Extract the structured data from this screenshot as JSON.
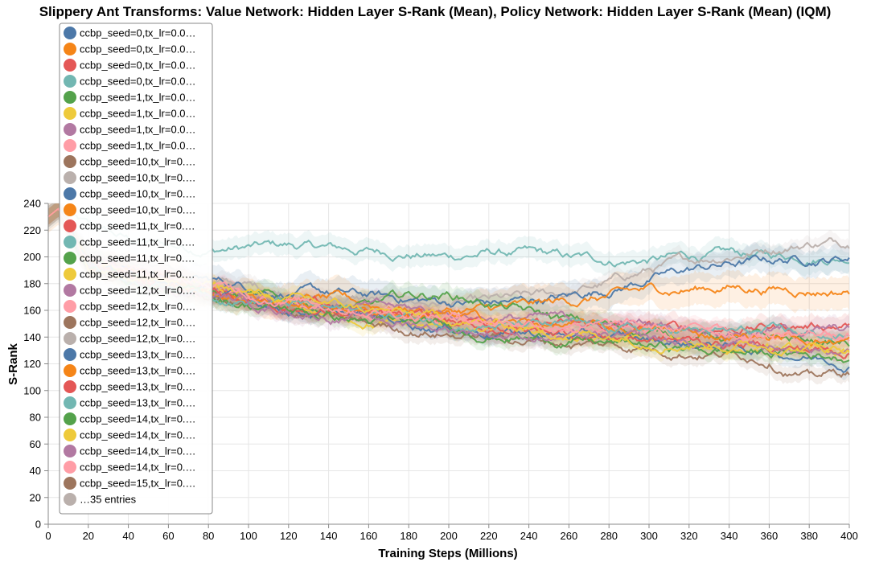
{
  "chart_data": {
    "type": "line",
    "title": "Slippery Ant Transforms: Value Network: Hidden Layer S-Rank (Mean), Policy Network: Hidden Layer S-Rank (Mean) (IQM)",
    "xlabel": "Training Steps (Millions)",
    "ylabel": "S-Rank",
    "xlim": [
      0,
      400
    ],
    "ylim": [
      0,
      240
    ],
    "x_ticks": [
      "0",
      "20",
      "40",
      "60",
      "80",
      "100",
      "120",
      "140",
      "160",
      "180",
      "200",
      "220",
      "240",
      "260",
      "280",
      "300",
      "320",
      "340",
      "360",
      "380",
      "400"
    ],
    "y_ticks": [
      "0",
      "20",
      "40",
      "60",
      "80",
      "100",
      "120",
      "140",
      "160",
      "180",
      "200",
      "220",
      "240"
    ],
    "grid": true,
    "legend_position": "top-left",
    "legend": {
      "entries": [
        {
          "label": "ccbp_seed=0,tx_lr=0.0…",
          "color": "#4c78a8"
        },
        {
          "label": "ccbp_seed=0,tx_lr=0.0…",
          "color": "#f58518"
        },
        {
          "label": "ccbp_seed=0,tx_lr=0.0…",
          "color": "#e45756"
        },
        {
          "label": "ccbp_seed=0,tx_lr=0.0…",
          "color": "#72b7b2"
        },
        {
          "label": "ccbp_seed=1,tx_lr=0.0…",
          "color": "#54a24b"
        },
        {
          "label": "ccbp_seed=1,tx_lr=0.0…",
          "color": "#eeca3b"
        },
        {
          "label": "ccbp_seed=1,tx_lr=0.0…",
          "color": "#b279a2"
        },
        {
          "label": "ccbp_seed=1,tx_lr=0.0…",
          "color": "#ff9da6"
        },
        {
          "label": "ccbp_seed=10,tx_lr=0.…",
          "color": "#9d755d"
        },
        {
          "label": "ccbp_seed=10,tx_lr=0.…",
          "color": "#bab0ac"
        },
        {
          "label": "ccbp_seed=10,tx_lr=0.…",
          "color": "#4c78a8"
        },
        {
          "label": "ccbp_seed=10,tx_lr=0.…",
          "color": "#f58518"
        },
        {
          "label": "ccbp_seed=11,tx_lr=0.…",
          "color": "#e45756"
        },
        {
          "label": "ccbp_seed=11,tx_lr=0.…",
          "color": "#72b7b2"
        },
        {
          "label": "ccbp_seed=11,tx_lr=0.…",
          "color": "#54a24b"
        },
        {
          "label": "ccbp_seed=11,tx_lr=0.…",
          "color": "#eeca3b"
        },
        {
          "label": "ccbp_seed=12,tx_lr=0.…",
          "color": "#b279a2"
        },
        {
          "label": "ccbp_seed=12,tx_lr=0.…",
          "color": "#ff9da6"
        },
        {
          "label": "ccbp_seed=12,tx_lr=0.…",
          "color": "#9d755d"
        },
        {
          "label": "ccbp_seed=12,tx_lr=0.…",
          "color": "#bab0ac"
        },
        {
          "label": "ccbp_seed=13,tx_lr=0.…",
          "color": "#4c78a8"
        },
        {
          "label": "ccbp_seed=13,tx_lr=0.…",
          "color": "#f58518"
        },
        {
          "label": "ccbp_seed=13,tx_lr=0.…",
          "color": "#e45756"
        },
        {
          "label": "ccbp_seed=13,tx_lr=0.…",
          "color": "#72b7b2"
        },
        {
          "label": "ccbp_seed=14,tx_lr=0.…",
          "color": "#54a24b"
        },
        {
          "label": "ccbp_seed=14,tx_lr=0.…",
          "color": "#eeca3b"
        },
        {
          "label": "ccbp_seed=14,tx_lr=0.…",
          "color": "#b279a2"
        },
        {
          "label": "ccbp_seed=14,tx_lr=0.…",
          "color": "#ff9da6"
        },
        {
          "label": "ccbp_seed=15,tx_lr=0.…",
          "color": "#9d755d"
        },
        {
          "label": "…35 entries",
          "color": "#bab0ac"
        }
      ]
    },
    "series": [
      {
        "color": "#72b7b2",
        "band": 8,
        "x": [
          0,
          5,
          20,
          40,
          60,
          80,
          100,
          120,
          140,
          160,
          180,
          200,
          220,
          240,
          260,
          280,
          300,
          320,
          340,
          360,
          380,
          400
        ],
        "y": [
          230,
          236,
          222,
          212,
          208,
          206,
          207,
          208,
          206,
          204,
          203,
          200,
          203,
          202,
          198,
          197,
          198,
          200,
          201,
          200,
          201,
          201
        ]
      },
      {
        "color": "#bab0ac",
        "band": 6,
        "x": [
          0,
          5,
          20,
          40,
          60,
          80,
          100,
          120,
          140,
          160,
          180,
          200,
          220,
          240,
          260,
          280,
          300,
          320,
          340,
          360,
          380,
          400
        ],
        "y": [
          230,
          236,
          205,
          196,
          188,
          182,
          178,
          174,
          170,
          168,
          166,
          165,
          165,
          168,
          172,
          180,
          190,
          196,
          202,
          207,
          211,
          212
        ]
      },
      {
        "color": "#4c78a8",
        "band": 10,
        "x": [
          0,
          5,
          20,
          40,
          60,
          80,
          100,
          120,
          140,
          160,
          180,
          200,
          220,
          240,
          260,
          280,
          300,
          320,
          340,
          360,
          380,
          400
        ],
        "y": [
          230,
          236,
          200,
          192,
          186,
          182,
          178,
          175,
          172,
          170,
          168,
          166,
          165,
          167,
          170,
          176,
          184,
          190,
          194,
          197,
          199,
          200
        ]
      },
      {
        "color": "#f58518",
        "band": 12,
        "x": [
          0,
          5,
          20,
          40,
          60,
          80,
          100,
          120,
          140,
          160,
          180,
          200,
          220,
          240,
          260,
          280,
          300,
          320,
          340,
          360,
          380,
          400
        ],
        "y": [
          230,
          236,
          198,
          190,
          184,
          178,
          174,
          170,
          168,
          164,
          162,
          160,
          160,
          162,
          166,
          170,
          174,
          176,
          178,
          177,
          176,
          175
        ]
      },
      {
        "color": "#e45756",
        "band": 8,
        "x": [
          0,
          5,
          20,
          40,
          60,
          80,
          100,
          120,
          140,
          160,
          180,
          200,
          220,
          240,
          260,
          280,
          300,
          320,
          340,
          360,
          380,
          400
        ],
        "y": [
          230,
          236,
          196,
          188,
          181,
          176,
          171,
          166,
          162,
          158,
          155,
          152,
          150,
          149,
          148,
          147,
          146,
          146,
          147,
          148,
          149,
          150
        ]
      },
      {
        "color": "#54a24b",
        "band": 8,
        "x": [
          0,
          5,
          20,
          40,
          60,
          80,
          100,
          120,
          140,
          160,
          180,
          200,
          220,
          240,
          260,
          280,
          300,
          320,
          340,
          360,
          380,
          400
        ],
        "y": [
          230,
          236,
          195,
          187,
          180,
          175,
          170,
          166,
          163,
          162,
          170,
          172,
          166,
          158,
          152,
          148,
          144,
          142,
          140,
          138,
          137,
          135
        ]
      },
      {
        "color": "#eeca3b",
        "band": 6,
        "x": [
          0,
          5,
          20,
          40,
          60,
          80,
          100,
          120,
          140,
          160,
          180,
          200,
          220,
          240,
          260,
          280,
          300,
          320,
          340,
          360,
          380,
          400
        ],
        "y": [
          230,
          236,
          193,
          185,
          178,
          172,
          166,
          160,
          156,
          152,
          148,
          145,
          143,
          141,
          139,
          137,
          136,
          134,
          132,
          130,
          128,
          126
        ]
      },
      {
        "color": "#b279a2",
        "band": 8,
        "x": [
          0,
          5,
          20,
          40,
          60,
          80,
          100,
          120,
          140,
          160,
          180,
          200,
          220,
          240,
          260,
          280,
          300,
          320,
          340,
          360,
          380,
          400
        ],
        "y": [
          230,
          236,
          196,
          188,
          182,
          177,
          173,
          169,
          166,
          163,
          160,
          158,
          156,
          154,
          152,
          150,
          149,
          148,
          147,
          146,
          145,
          144
        ]
      },
      {
        "color": "#ff9da6",
        "band": 6,
        "x": [
          0,
          5,
          20,
          40,
          60,
          80,
          100,
          120,
          140,
          160,
          180,
          200,
          220,
          240,
          260,
          280,
          300,
          320,
          340,
          360,
          380,
          400
        ],
        "y": [
          230,
          236,
          194,
          186,
          180,
          174,
          169,
          165,
          161,
          158,
          155,
          152,
          150,
          148,
          146,
          144,
          143,
          142,
          141,
          140,
          139,
          138
        ]
      },
      {
        "color": "#9d755d",
        "band": 6,
        "x": [
          0,
          5,
          20,
          40,
          60,
          80,
          100,
          120,
          140,
          160,
          180,
          200,
          220,
          240,
          260,
          280,
          300,
          320,
          340,
          360,
          380,
          400
        ],
        "y": [
          230,
          236,
          190,
          182,
          175,
          169,
          163,
          158,
          153,
          149,
          146,
          143,
          140,
          138,
          136,
          134,
          132,
          130,
          128,
          125,
          110,
          114
        ]
      },
      {
        "color": "#4c78a8",
        "band": 6,
        "x": [
          0,
          5,
          20,
          40,
          60,
          80,
          100,
          120,
          140,
          160,
          180,
          200,
          220,
          240,
          260,
          280,
          300,
          320,
          340,
          360,
          380,
          400
        ],
        "y": [
          230,
          236,
          192,
          184,
          178,
          172,
          167,
          162,
          158,
          154,
          151,
          148,
          145,
          143,
          141,
          139,
          137,
          135,
          133,
          130,
          126,
          122
        ]
      },
      {
        "color": "#f58518",
        "band": 6,
        "x": [
          0,
          5,
          20,
          40,
          60,
          80,
          100,
          120,
          140,
          160,
          180,
          200,
          220,
          240,
          260,
          280,
          300,
          320,
          340,
          360,
          380,
          400
        ],
        "y": [
          230,
          236,
          195,
          187,
          181,
          175,
          170,
          166,
          163,
          160,
          157,
          155,
          152,
          150,
          148,
          146,
          145,
          143,
          141,
          140,
          139,
          138
        ]
      },
      {
        "color": "#e45756",
        "band": 6,
        "x": [
          0,
          5,
          20,
          40,
          60,
          80,
          100,
          120,
          140,
          160,
          180,
          200,
          220,
          240,
          260,
          280,
          300,
          320,
          340,
          360,
          380,
          400
        ],
        "y": [
          230,
          236,
          193,
          185,
          179,
          173,
          168,
          163,
          159,
          156,
          153,
          150,
          147,
          145,
          143,
          141,
          139,
          137,
          135,
          133,
          131,
          130
        ]
      },
      {
        "color": "#54a24b",
        "band": 6,
        "x": [
          0,
          5,
          20,
          40,
          60,
          80,
          100,
          120,
          140,
          160,
          180,
          200,
          220,
          240,
          260,
          280,
          300,
          320,
          340,
          360,
          380,
          400
        ],
        "y": [
          230,
          236,
          191,
          183,
          176,
          170,
          165,
          160,
          156,
          152,
          149,
          146,
          143,
          140,
          138,
          135,
          133,
          131,
          129,
          128,
          127,
          126
        ]
      },
      {
        "color": "#72b7b2",
        "band": 6,
        "x": [
          0,
          5,
          20,
          40,
          60,
          80,
          100,
          120,
          140,
          160,
          180,
          200,
          220,
          240,
          260,
          280,
          300,
          320,
          340,
          360,
          380,
          400
        ],
        "y": [
          230,
          236,
          194,
          186,
          179,
          174,
          169,
          165,
          161,
          158,
          155,
          152,
          150,
          148,
          147,
          146,
          145,
          144,
          143,
          142,
          141,
          140
        ]
      },
      {
        "color": "#b279a2",
        "band": 6,
        "x": [
          0,
          5,
          20,
          40,
          60,
          80,
          100,
          120,
          140,
          160,
          180,
          200,
          220,
          240,
          260,
          280,
          300,
          320,
          340,
          360,
          380,
          400
        ],
        "y": [
          230,
          236,
          192,
          184,
          177,
          171,
          166,
          161,
          157,
          153,
          150,
          147,
          144,
          142,
          140,
          138,
          136,
          134,
          133,
          132,
          131,
          130
        ]
      },
      {
        "color": "#eeca3b",
        "band": 6,
        "x": [
          0,
          5,
          20,
          40,
          60,
          80,
          100,
          120,
          140,
          160,
          180,
          200,
          220,
          240,
          260,
          280,
          300,
          320,
          340,
          360,
          380,
          400
        ],
        "y": [
          230,
          236,
          196,
          189,
          183,
          178,
          173,
          168,
          164,
          160,
          156,
          153,
          150,
          147,
          144,
          142,
          140,
          138,
          136,
          134,
          133,
          132
        ]
      },
      {
        "color": "#ff9da6",
        "band": 6,
        "x": [
          0,
          5,
          20,
          40,
          60,
          80,
          100,
          120,
          140,
          160,
          180,
          200,
          220,
          240,
          260,
          280,
          300,
          320,
          340,
          360,
          380,
          400
        ],
        "y": [
          230,
          236,
          197,
          190,
          184,
          178,
          173,
          169,
          165,
          162,
          159,
          156,
          154,
          152,
          150,
          148,
          146,
          145,
          144,
          143,
          142,
          141
        ]
      }
    ]
  }
}
